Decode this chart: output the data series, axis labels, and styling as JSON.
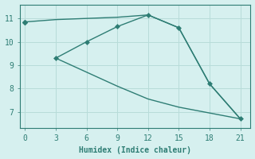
{
  "xlabel": "Humidex (Indice chaleur)",
  "background_color": "#d6f0ef",
  "grid_color": "#b8dcd9",
  "line_color": "#2e7d74",
  "line1_x": [
    0,
    3,
    6,
    9,
    12,
    15,
    18,
    21
  ],
  "line1_y": [
    10.85,
    10.95,
    11.0,
    11.05,
    11.15,
    10.6,
    8.2,
    6.7
  ],
  "line2_x": [
    3,
    6,
    9,
    12,
    15,
    18,
    21
  ],
  "line2_y": [
    9.3,
    10.0,
    10.65,
    11.15,
    10.6,
    8.2,
    6.7
  ],
  "line3_x": [
    3,
    6,
    9,
    12,
    15,
    18,
    21
  ],
  "line3_y": [
    9.3,
    8.7,
    8.1,
    7.55,
    7.2,
    6.95,
    6.7
  ],
  "xlim": [
    -0.5,
    22
  ],
  "ylim": [
    6.3,
    11.6
  ],
  "xticks": [
    0,
    3,
    6,
    9,
    12,
    15,
    18,
    21
  ],
  "yticks": [
    7,
    8,
    9,
    10,
    11
  ]
}
